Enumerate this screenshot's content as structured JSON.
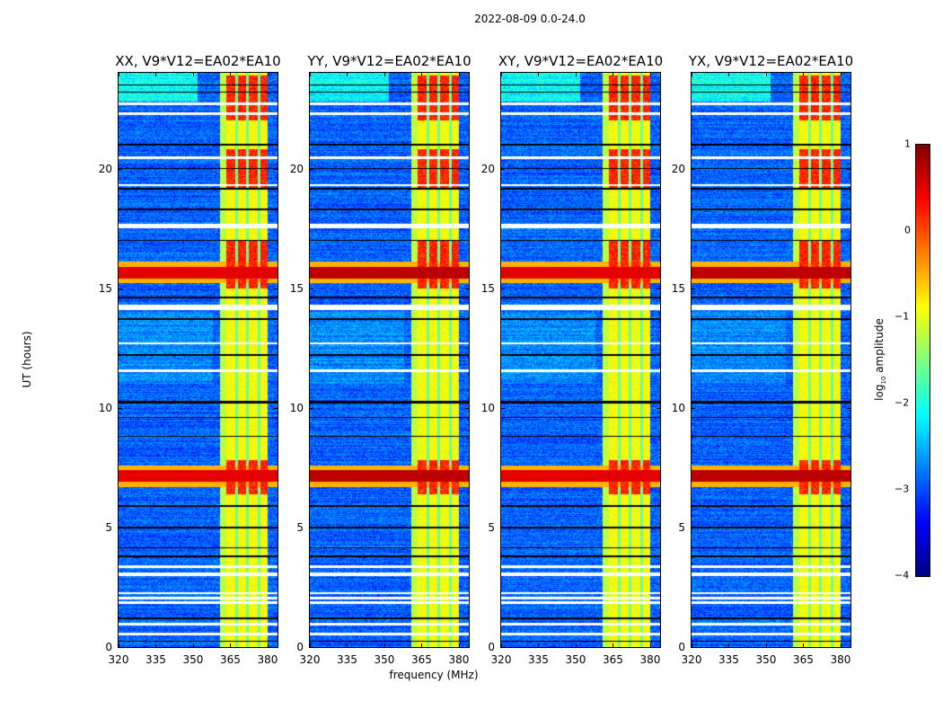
{
  "chart_data": {
    "type": "heatmap",
    "title": "2022-08-09 0.0-24.0",
    "xlabel": "frequency (MHz)",
    "ylabel": "UT (hours)",
    "xlim": [
      320,
      384
    ],
    "ylim": [
      0,
      24
    ],
    "xticks": [
      "320",
      "335",
      "350",
      "365",
      "380"
    ],
    "xtick_values": [
      320,
      335,
      350,
      365,
      380
    ],
    "yticks": [
      "0",
      "5",
      "10",
      "15",
      "20"
    ],
    "ytick_values": [
      0,
      5,
      10,
      15,
      20
    ],
    "panels": [
      {
        "title": "XX, V9*V12=EA02*EA10"
      },
      {
        "title": "YY, V9*V12=EA02*EA10"
      },
      {
        "title": "XY, V9*V12=EA02*EA10"
      },
      {
        "title": "YX, V9*V12=EA02*EA10"
      }
    ],
    "colorbar": {
      "label_main": "log",
      "label_sub": "10",
      "label_rest": " amplitude",
      "ticks": [
        "1",
        "0",
        "−1",
        "−2",
        "−3",
        "−4"
      ],
      "tick_values": [
        1,
        0,
        -1,
        -2,
        -3,
        -4
      ],
      "range": [
        -4,
        1
      ],
      "colormap": "jet"
    },
    "features": {
      "background_log_amp": -2.9,
      "signal_band_mhz": [
        361,
        380
      ],
      "signal_log_amp": -0.9,
      "rfi_bursts_hours": [
        [
          6.7,
          7.6
        ],
        [
          15.2,
          16.1
        ]
      ],
      "strong_signal_hours": [
        [
          6.4,
          7.8
        ],
        [
          15.0,
          17.0
        ],
        [
          19.2,
          20.8
        ],
        [
          22.0,
          23.9
        ]
      ],
      "flagged_rows_hours": [
        0.55,
        0.95,
        1.85,
        2.05,
        2.25,
        3.0,
        3.05,
        3.35,
        11.55,
        12.7,
        14.15,
        14.25,
        17.55,
        17.65,
        19.3,
        20.45,
        22.3,
        22.7
      ],
      "dropout_rows_hours": [
        0.25,
        1.2,
        3.8,
        4.15,
        5.0,
        5.9,
        8.8,
        9.6,
        10.2,
        10.25,
        12.2,
        13.7,
        14.6,
        17.0,
        18.3,
        19.15,
        20.0,
        21.0,
        23.2,
        23.5
      ]
    }
  }
}
